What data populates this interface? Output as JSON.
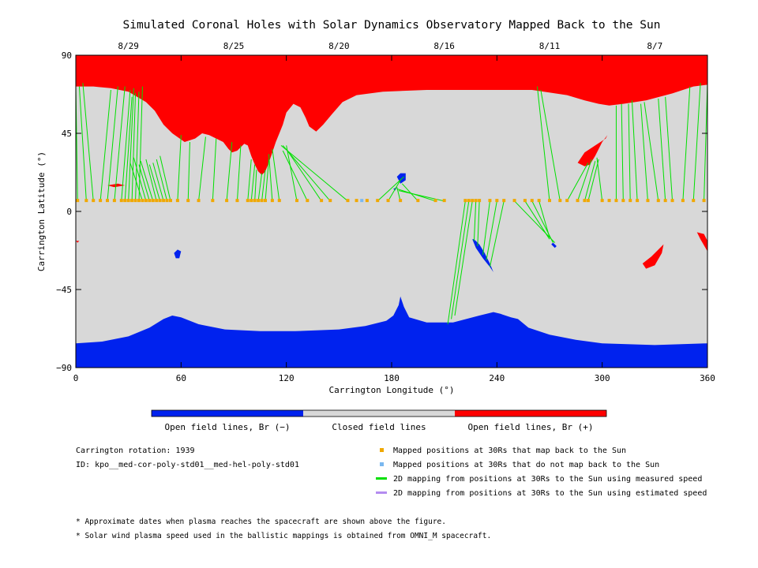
{
  "chart_data": {
    "type": "map",
    "title": "Simulated Coronal Holes with Solar Dynamics Observatory Mapped Back to the Sun",
    "xlabel": "Carrington Longitude (°)",
    "ylabel": "Carrington Latitude (°)",
    "xlim": [
      0,
      360
    ],
    "ylim": [
      -90,
      90
    ],
    "x_ticks": [
      0,
      60,
      120,
      180,
      240,
      300,
      360
    ],
    "y_ticks": [
      -90,
      -45,
      0,
      45,
      90
    ],
    "y_tick_labels": [
      "−90",
      "−45",
      "0",
      "45",
      "90"
    ],
    "top_axis_dates": [
      {
        "label": "8/29",
        "lon": 30
      },
      {
        "label": "8/25",
        "lon": 90
      },
      {
        "label": "8/20",
        "lon": 150
      },
      {
        "label": "8/16",
        "lon": 210
      },
      {
        "label": "8/11",
        "lon": 270
      },
      {
        "label": "8/7",
        "lon": 330
      }
    ],
    "colors": {
      "negative_open": "#0022ee",
      "closed": "#d8d8d8",
      "positive_open": "#ff0000",
      "mapped": "#f0a800",
      "unmapped": "#7ab8f0",
      "measured_line": "#00e000",
      "estimated_line": "#b48cf0"
    },
    "regions": {
      "north_polar_boundary": [
        [
          0,
          72
        ],
        [
          10,
          72
        ],
        [
          20,
          71
        ],
        [
          30,
          69
        ],
        [
          40,
          63
        ],
        [
          45,
          58
        ],
        [
          50,
          50
        ],
        [
          55,
          45
        ],
        [
          62,
          40
        ],
        [
          68,
          42
        ],
        [
          72,
          45
        ],
        [
          76,
          44
        ],
        [
          80,
          42
        ],
        [
          84,
          40
        ],
        [
          87,
          36
        ],
        [
          89,
          34
        ],
        [
          92,
          35
        ],
        [
          94,
          37
        ],
        [
          96,
          39
        ],
        [
          98,
          38
        ],
        [
          100,
          32
        ],
        [
          102,
          27
        ],
        [
          104,
          23
        ],
        [
          106,
          21
        ],
        [
          108,
          23
        ],
        [
          110,
          28
        ],
        [
          112,
          34
        ],
        [
          114,
          40
        ],
        [
          116,
          45
        ],
        [
          118,
          50
        ],
        [
          120,
          57
        ],
        [
          124,
          62
        ],
        [
          128,
          60
        ],
        [
          131,
          54
        ],
        [
          133,
          49
        ],
        [
          137,
          46
        ],
        [
          141,
          50
        ],
        [
          146,
          56
        ],
        [
          152,
          63
        ],
        [
          160,
          67
        ],
        [
          175,
          69
        ],
        [
          200,
          70
        ],
        [
          230,
          70
        ],
        [
          260,
          70
        ],
        [
          280,
          67
        ],
        [
          290,
          64
        ],
        [
          298,
          62
        ],
        [
          304,
          61
        ],
        [
          312,
          62
        ],
        [
          325,
          64
        ],
        [
          340,
          68
        ],
        [
          352,
          72
        ],
        [
          360,
          73
        ]
      ],
      "south_polar_boundary": [
        [
          0,
          -76
        ],
        [
          15,
          -75
        ],
        [
          30,
          -72
        ],
        [
          42,
          -67
        ],
        [
          50,
          -62
        ],
        [
          55,
          -60
        ],
        [
          60,
          -61
        ],
        [
          70,
          -65
        ],
        [
          85,
          -68
        ],
        [
          105,
          -69
        ],
        [
          125,
          -69
        ],
        [
          150,
          -68
        ],
        [
          165,
          -66
        ],
        [
          177,
          -63
        ],
        [
          181,
          -60
        ],
        [
          184,
          -54
        ],
        [
          185,
          -49
        ],
        [
          187,
          -55
        ],
        [
          190,
          -61
        ],
        [
          200,
          -64
        ],
        [
          215,
          -64
        ],
        [
          230,
          -60
        ],
        [
          238,
          -58
        ],
        [
          242,
          -59
        ],
        [
          248,
          -61
        ],
        [
          252,
          -62
        ],
        [
          258,
          -67
        ],
        [
          270,
          -71
        ],
        [
          285,
          -74
        ],
        [
          300,
          -76
        ],
        [
          330,
          -77
        ],
        [
          360,
          -76
        ]
      ],
      "positive_holes": [
        [
          [
            286,
            28
          ],
          [
            290,
            34
          ],
          [
            296,
            38
          ],
          [
            302,
            42
          ],
          [
            303,
            44
          ],
          [
            300,
            40
          ],
          [
            296,
            32
          ],
          [
            293,
            27
          ],
          [
            290,
            26
          ]
        ],
        [
          [
            323,
            -30
          ],
          [
            328,
            -26
          ],
          [
            332,
            -22
          ],
          [
            335,
            -19
          ],
          [
            334,
            -24
          ],
          [
            330,
            -31
          ],
          [
            325,
            -33
          ]
        ],
        [
          [
            354,
            -12
          ],
          [
            356,
            -16
          ],
          [
            360,
            -23
          ],
          [
            360,
            -17
          ],
          [
            358,
            -13
          ]
        ],
        [
          [
            18,
            15
          ],
          [
            24,
            16
          ],
          [
            28,
            15
          ],
          [
            22,
            14
          ]
        ],
        [
          [
            0,
            -17
          ],
          [
            1,
            -18
          ],
          [
            2,
            -17
          ]
        ]
      ],
      "negative_holes": [
        [
          [
            183,
            20
          ],
          [
            185,
            22
          ],
          [
            188,
            22
          ],
          [
            188,
            18
          ],
          [
            185,
            16
          ],
          [
            184,
            18
          ]
        ],
        [
          [
            181,
            13
          ],
          [
            183,
            14
          ],
          [
            182,
            12
          ]
        ],
        [
          [
            226,
            -16
          ],
          [
            228,
            -21
          ],
          [
            232,
            -27
          ],
          [
            236,
            -32
          ],
          [
            238,
            -35
          ],
          [
            236,
            -30
          ],
          [
            233,
            -24
          ],
          [
            230,
            -19
          ],
          [
            227,
            -16
          ]
        ],
        [
          [
            272,
            -18
          ],
          [
            274,
            -20
          ],
          [
            273,
            -21
          ],
          [
            271,
            -19
          ]
        ],
        [
          [
            56,
            -24
          ],
          [
            58,
            -22
          ],
          [
            60,
            -23
          ],
          [
            59,
            -27
          ],
          [
            57,
            -27
          ]
        ]
      ]
    },
    "spacecraft_lat": 6.3,
    "mapped_positions_lon": [
      1,
      6,
      10,
      14,
      18,
      22,
      26,
      28,
      30,
      32,
      34,
      36,
      38,
      40,
      42,
      44,
      46,
      48,
      50,
      52,
      54,
      58,
      64,
      70,
      78,
      86,
      92,
      98,
      100,
      102,
      104,
      106,
      108,
      112,
      116,
      126,
      132,
      140,
      145,
      155,
      160,
      166,
      172,
      178,
      185,
      195,
      205,
      210,
      222,
      224,
      226,
      228,
      230,
      236,
      240,
      244,
      250,
      256,
      260,
      264,
      270,
      276,
      280,
      286,
      290,
      292,
      300,
      304,
      308,
      312,
      316,
      320,
      326,
      332,
      336,
      340,
      346,
      352,
      358
    ],
    "unmapped_positions_lon": [
      163
    ],
    "measured_speed_mappings": [
      [
        1,
        6,
        0,
        73
      ],
      [
        6,
        6,
        2,
        72
      ],
      [
        10,
        6,
        4,
        74
      ],
      [
        14,
        6,
        20,
        70
      ],
      [
        18,
        6,
        24,
        72
      ],
      [
        22,
        6,
        28,
        72
      ],
      [
        26,
        6,
        31,
        70
      ],
      [
        28,
        6,
        32,
        66
      ],
      [
        30,
        6,
        33,
        71
      ],
      [
        32,
        6,
        34,
        68
      ],
      [
        34,
        6,
        36,
        69
      ],
      [
        36,
        6,
        38,
        72
      ],
      [
        38,
        6,
        31,
        28
      ],
      [
        40,
        6,
        33,
        31
      ],
      [
        42,
        6,
        36,
        27
      ],
      [
        44,
        6,
        37,
        29
      ],
      [
        46,
        6,
        40,
        30
      ],
      [
        48,
        6,
        42,
        27
      ],
      [
        50,
        6,
        44,
        28
      ],
      [
        52,
        6,
        46,
        30
      ],
      [
        54,
        6,
        48,
        32
      ],
      [
        58,
        6,
        60,
        44
      ],
      [
        64,
        6,
        65,
        40
      ],
      [
        70,
        6,
        74,
        43
      ],
      [
        78,
        6,
        80,
        42
      ],
      [
        86,
        6,
        89,
        40
      ],
      [
        92,
        6,
        94,
        38
      ],
      [
        98,
        6,
        100,
        30
      ],
      [
        100,
        6,
        102,
        27
      ],
      [
        102,
        6,
        103,
        24
      ],
      [
        104,
        6,
        106,
        22
      ],
      [
        106,
        6,
        108,
        24
      ],
      [
        108,
        6,
        110,
        30
      ],
      [
        112,
        6,
        110,
        33
      ],
      [
        116,
        6,
        112,
        36
      ],
      [
        126,
        6,
        120,
        38
      ],
      [
        132,
        6,
        118,
        35
      ],
      [
        140,
        6,
        120,
        36
      ],
      [
        145,
        6,
        118,
        38
      ],
      [
        155,
        6,
        117,
        38
      ],
      [
        172,
        6,
        187,
        20
      ],
      [
        178,
        6,
        185,
        18
      ],
      [
        185,
        6,
        183,
        14
      ],
      [
        195,
        6,
        186,
        16
      ],
      [
        205,
        6,
        183,
        13
      ],
      [
        210,
        6,
        184,
        12
      ],
      [
        222,
        6,
        212,
        -65
      ],
      [
        224,
        6,
        214,
        -62
      ],
      [
        226,
        6,
        216,
        -60
      ],
      [
        228,
        6,
        227,
        -17
      ],
      [
        230,
        6,
        229,
        -20
      ],
      [
        236,
        6,
        232,
        -25
      ],
      [
        240,
        6,
        234,
        -28
      ],
      [
        244,
        6,
        236,
        -32
      ],
      [
        250,
        6,
        273,
        -18
      ],
      [
        256,
        6,
        270,
        -16
      ],
      [
        260,
        6,
        272,
        -18
      ],
      [
        264,
        6,
        270,
        -15
      ],
      [
        270,
        6,
        263,
        72
      ],
      [
        276,
        6,
        265,
        70
      ],
      [
        280,
        6,
        292,
        28
      ],
      [
        286,
        6,
        294,
        30
      ],
      [
        290,
        6,
        296,
        29
      ],
      [
        292,
        6,
        298,
        30
      ],
      [
        300,
        6,
        297,
        31
      ],
      [
        308,
        6,
        308,
        61
      ],
      [
        312,
        6,
        311,
        62
      ],
      [
        316,
        6,
        315,
        62
      ],
      [
        320,
        6,
        317,
        64
      ],
      [
        326,
        6,
        322,
        62
      ],
      [
        332,
        6,
        324,
        63
      ],
      [
        336,
        6,
        332,
        65
      ],
      [
        340,
        6,
        336,
        66
      ],
      [
        346,
        6,
        350,
        72
      ],
      [
        352,
        6,
        356,
        74
      ],
      [
        358,
        6,
        360,
        74
      ]
    ],
    "colorbar": [
      {
        "label": "Open field lines, Br (−)",
        "color": "#0022ee"
      },
      {
        "label": "Closed field lines",
        "color": "#d8d8d8"
      },
      {
        "label": "Open field lines, Br (+)",
        "color": "#ff0000"
      }
    ],
    "legend": [
      {
        "kind": "square",
        "color": "#f0a800",
        "label": "Mapped positions at 30Rs that map back to the Sun"
      },
      {
        "kind": "square",
        "color": "#7ab8f0",
        "label": "Mapped positions at 30Rs that do not map back to the Sun"
      },
      {
        "kind": "line",
        "color": "#00e000",
        "label": "2D mapping from positions at 30Rs to the Sun using measured speed"
      },
      {
        "kind": "line",
        "color": "#b48cf0",
        "label": "2D mapping from positions at 30Rs to the Sun using estimated speed"
      }
    ]
  },
  "info": {
    "rotation": "Carrington rotation: 1939",
    "id": "ID: kpo__med-cor-poly-std01__med-hel-poly-std01"
  },
  "footnotes": [
    "* Approximate dates when plasma reaches the spacecraft are shown above the figure.",
    "* Solar wind plasma speed used in the ballistic mappings is obtained from OMNI_M spacecraft."
  ]
}
